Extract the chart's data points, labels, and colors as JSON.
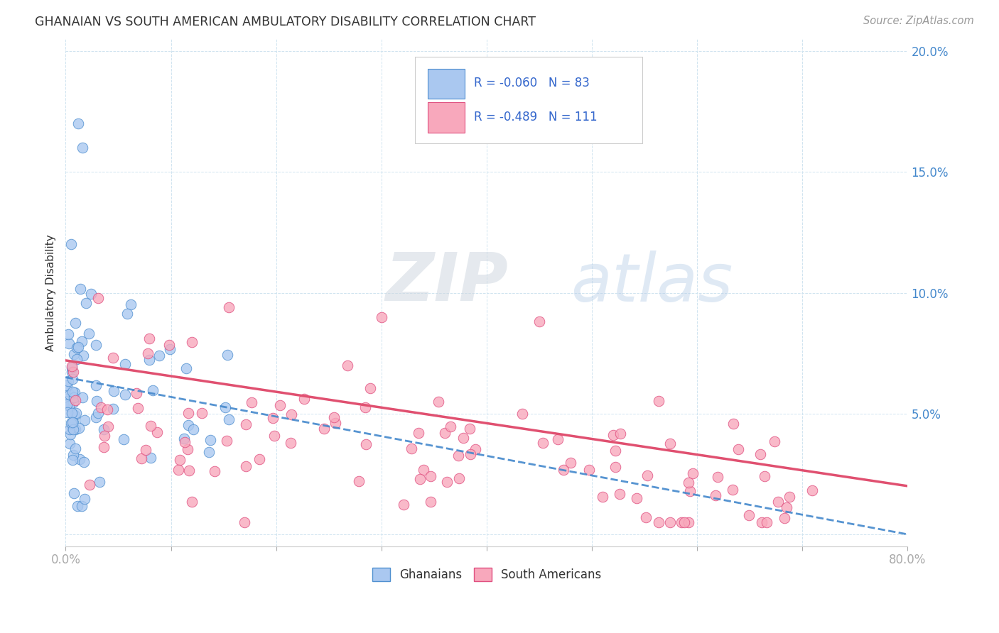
{
  "title": "GHANAIAN VS SOUTH AMERICAN AMBULATORY DISABILITY CORRELATION CHART",
  "source": "Source: ZipAtlas.com",
  "ylabel": "Ambulatory Disability",
  "xlim": [
    0.0,
    0.8
  ],
  "ylim": [
    -0.005,
    0.205
  ],
  "ghana_color": "#aac8f0",
  "ghana_edge_color": "#5090d0",
  "south_am_color": "#f8a8bc",
  "south_am_edge_color": "#e05080",
  "ghana_line_color": "#4488cc",
  "south_am_line_color": "#e05070",
  "legend_text_color": "#3366cc",
  "title_color": "#333333",
  "axis_label_color": "#333333",
  "tick_color": "#4488cc",
  "grid_color": "#d0e4f0",
  "background_color": "#ffffff",
  "watermark_zip": "ZIP",
  "watermark_atlas": "atlas",
  "ghana_R": -0.06,
  "ghana_N": 83,
  "south_am_R": -0.489,
  "south_am_N": 111
}
